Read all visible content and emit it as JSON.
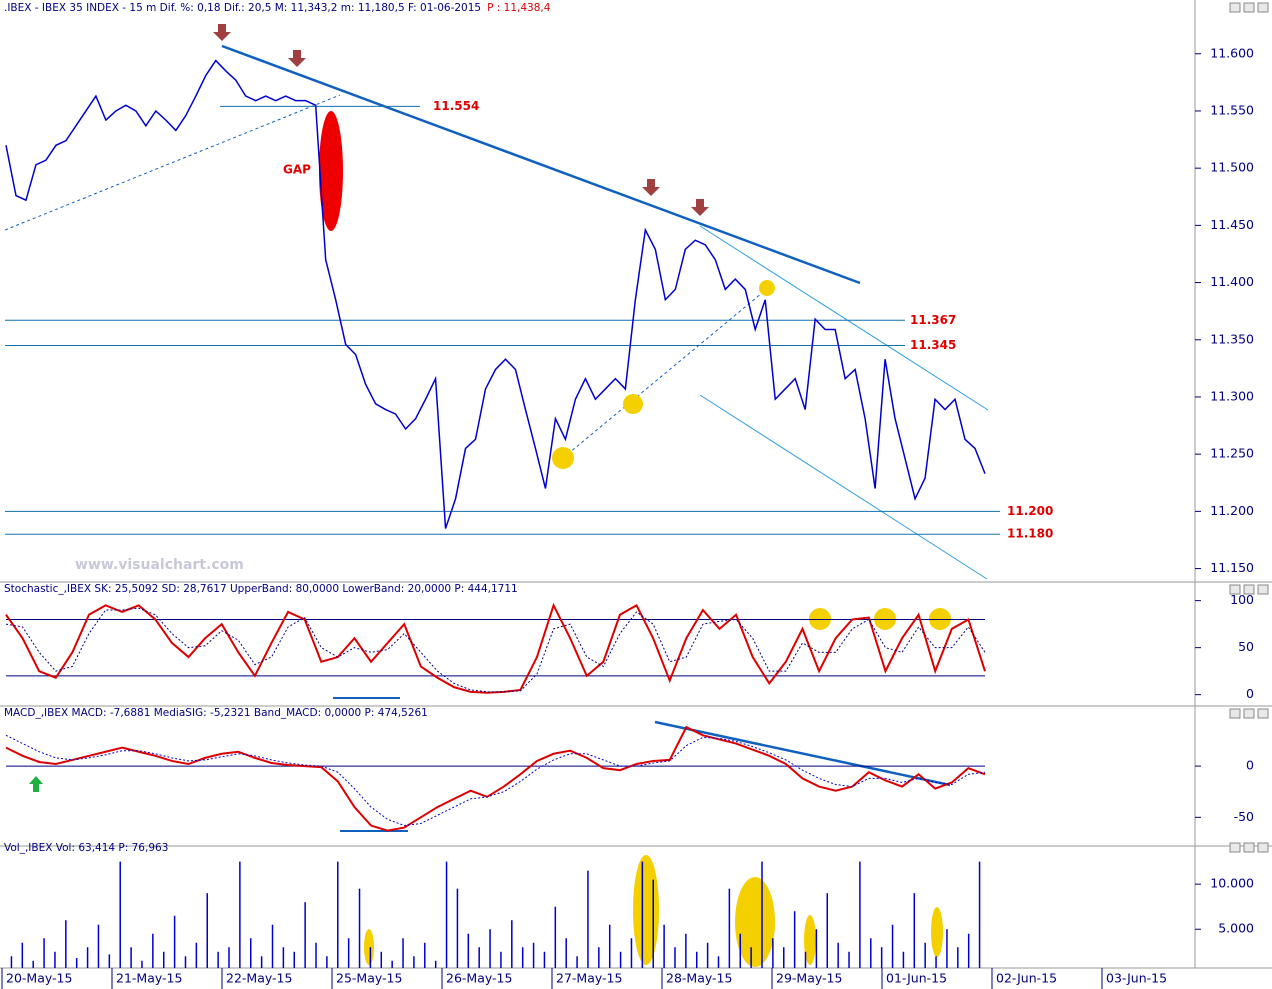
{
  "chart_data": [
    {
      "type": "line",
      "title": ".IBEX - IBEX 35 INDEX -  15 m Dif. %: 0,18 Dif.: 20,5 M: 11,343,2 m: 11,180,5 F: 01-06-2015",
      "header_price": "P : 11,438,4",
      "annotations": [
        "GAP",
        "www.visualchart.com"
      ],
      "ylim": [
        11140,
        11640
      ],
      "yticks": [
        {
          "value": 11150,
          "label": "11.150"
        },
        {
          "value": 11200,
          "label": "11.200"
        },
        {
          "value": 11250,
          "label": "11.250"
        },
        {
          "value": 11300,
          "label": "11.300"
        },
        {
          "value": 11350,
          "label": "11.350"
        },
        {
          "value": 11400,
          "label": "11.400"
        },
        {
          "value": 11450,
          "label": "11.450"
        },
        {
          "value": 11500,
          "label": "11.500"
        },
        {
          "value": 11550,
          "label": "11.550"
        },
        {
          "value": 11600,
          "label": "11.600"
        }
      ],
      "levels": [
        {
          "value": 11554,
          "label": "11.554"
        },
        {
          "value": 11367,
          "label": "11.367"
        },
        {
          "value": 11345,
          "label": "11.345"
        },
        {
          "value": 11200,
          "label": "11.200"
        },
        {
          "value": 11180,
          "label": "11.180"
        }
      ],
      "series": [
        {
          "name": "IBEX",
          "color": "#0000cc",
          "values": [
            11520,
            11476,
            11472,
            11503,
            11507,
            11520,
            11524,
            11537,
            11550,
            11563,
            11542,
            11550,
            11555,
            11550,
            11537,
            11550,
            11542,
            11533,
            11546,
            11563,
            11581,
            11594,
            11585,
            11577,
            11563,
            11559,
            11563,
            11559,
            11563,
            11559,
            11559,
            11555,
            11420,
            11385,
            11346,
            11337,
            11311,
            11294,
            11289,
            11285,
            11272,
            11281,
            11298,
            11316,
            11185,
            11211,
            11255,
            11263,
            11307,
            11324,
            11333,
            11324,
            11289,
            11255,
            11220,
            11281,
            11263,
            11298,
            11316,
            11298,
            11307,
            11316,
            11307,
            11385,
            11446,
            11429,
            11385,
            11394,
            11429,
            11437,
            11433,
            11420,
            11394,
            11403,
            11394,
            11359,
            11385,
            11298,
            11307,
            11316,
            11289,
            11368,
            11359,
            11359,
            11316,
            11324,
            11281,
            11220,
            11333,
            11281,
            11246,
            11211,
            11229,
            11298,
            11289,
            11298,
            11263,
            11255,
            11233
          ]
        }
      ]
    },
    {
      "type": "line",
      "title": "Stochastic_,IBEX SK: 25,5092 SD: 28,7617 UpperBand: 80,0000 LowerBand: 20,0000 P: 444,1711",
      "ylim": [
        -11,
        106
      ],
      "yticks": [
        0,
        50,
        100
      ],
      "hlines": [
        20,
        80
      ],
      "series": [
        {
          "name": "SK",
          "color": "#dd0000",
          "values": [
            85,
            60,
            25,
            18,
            45,
            85,
            95,
            88,
            95,
            80,
            55,
            40,
            60,
            75,
            45,
            20,
            55,
            88,
            80,
            35,
            40,
            60,
            35,
            55,
            75,
            30,
            18,
            8,
            3,
            2,
            3,
            5,
            40,
            95,
            60,
            20,
            35,
            85,
            95,
            60,
            15,
            60,
            90,
            70,
            85,
            40,
            12,
            35,
            70,
            25,
            60,
            80,
            82,
            25,
            60,
            85,
            25,
            70,
            80,
            25
          ]
        },
        {
          "name": "SD",
          "color": "#000080",
          "values": [
            75,
            72,
            45,
            25,
            30,
            65,
            90,
            90,
            92,
            85,
            65,
            50,
            52,
            68,
            58,
            32,
            40,
            72,
            82,
            50,
            40,
            50,
            45,
            48,
            65,
            45,
            25,
            12,
            5,
            3,
            3,
            4,
            22,
            70,
            75,
            40,
            30,
            65,
            88,
            75,
            35,
            40,
            75,
            78,
            80,
            60,
            25,
            25,
            55,
            45,
            45,
            70,
            80,
            50,
            45,
            72,
            50,
            50,
            72,
            45
          ]
        }
      ]
    },
    {
      "type": "line",
      "title": "MACD_,IBEX MACD: -7,6881 MediaSIG: -5,2321 Band_MACD: 0,0000 P: 474,5261",
      "ylim": [
        -77,
        43
      ],
      "yticks": [
        -50,
        0
      ],
      "hlines": [
        0
      ],
      "series": [
        {
          "name": "MACD",
          "color": "#dd0000",
          "values": [
            18,
            10,
            4,
            2,
            6,
            10,
            14,
            18,
            14,
            10,
            5,
            2,
            8,
            12,
            14,
            8,
            3,
            1,
            0,
            -1,
            -15,
            -40,
            -58,
            -63,
            -60,
            -50,
            -40,
            -32,
            -24,
            -30,
            -20,
            -8,
            5,
            12,
            15,
            8,
            -2,
            -4,
            2,
            5,
            6,
            38,
            30,
            26,
            22,
            16,
            10,
            2,
            -12,
            -20,
            -24,
            -20,
            -6,
            -14,
            -20,
            -8,
            -22,
            -16,
            -2,
            -8
          ]
        },
        {
          "name": "MediaSIG",
          "color": "#0000cc",
          "values": [
            30,
            22,
            14,
            8,
            6,
            8,
            11,
            15,
            15,
            12,
            8,
            5,
            6,
            9,
            12,
            10,
            6,
            3,
            1,
            0,
            -6,
            -22,
            -40,
            -52,
            -58,
            -56,
            -48,
            -40,
            -32,
            -30,
            -25,
            -15,
            -3,
            6,
            12,
            12,
            6,
            0,
            0,
            3,
            5,
            20,
            28,
            27,
            24,
            19,
            13,
            6,
            -4,
            -12,
            -18,
            -20,
            -12,
            -12,
            -16,
            -12,
            -16,
            -18,
            -8,
            -6
          ]
        }
      ]
    },
    {
      "type": "bar",
      "title": "Vol_,IBEX Vol: 63,414 P: 76,963",
      "ylim": [
        700,
        12900
      ],
      "yticks": [
        {
          "value": 5000,
          "label": "5.000"
        },
        {
          "value": 10000,
          "label": "10.000"
        }
      ],
      "color": "#0000cc",
      "values": [
        2000,
        3500,
        1500,
        4000,
        2500,
        6000,
        1800,
        3000,
        5500,
        2200,
        12500,
        3000,
        1500,
        4500,
        2500,
        6500,
        2000,
        3500,
        9000,
        2500,
        3000,
        12500,
        4000,
        2000,
        5500,
        3000,
        2500,
        8000,
        3500,
        2000,
        12500,
        4000,
        9500,
        3000,
        2500,
        1500,
        4000,
        2000,
        3500,
        1500,
        12500,
        9500,
        4500,
        3000,
        5000,
        2500,
        6000,
        3000,
        3500,
        2500,
        7500,
        4000,
        2000,
        11500,
        3000,
        5500,
        2500,
        4000,
        12500,
        10500,
        5500,
        3000,
        4500,
        2500,
        3500,
        2000,
        9500,
        4500,
        3000,
        12500,
        4000,
        3000,
        7000,
        2500,
        5000,
        9000,
        3500,
        2500,
        12500,
        4000,
        3000,
        5500,
        2500,
        9000,
        3500,
        2000,
        5000,
        3000,
        4500,
        12500
      ],
      "date_labels": [
        "20-May-15",
        "21-May-15",
        "22-May-15",
        "25-May-15",
        "26-May-15",
        "27-May-15",
        "28-May-15",
        "29-May-15",
        "01-Jun-15",
        "02-Jun-15",
        "03-Jun-15"
      ]
    }
  ]
}
